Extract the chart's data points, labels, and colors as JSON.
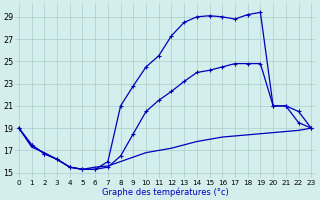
{
  "title": "Graphe des températures (°c)",
  "background_color": "#d4eeed",
  "line_color": "#0000bb",
  "yticks": [
    15,
    17,
    19,
    21,
    23,
    25,
    27,
    29
  ],
  "xticks": [
    0,
    1,
    2,
    3,
    4,
    5,
    6,
    7,
    8,
    9,
    10,
    11,
    12,
    13,
    14,
    15,
    16,
    17,
    18,
    19,
    20,
    21,
    22,
    23
  ],
  "xlim": [
    -0.3,
    23.3
  ],
  "ylim": [
    14.5,
    30.2
  ],
  "series1": {
    "x": [
      0,
      1,
      2,
      3,
      4,
      5,
      6,
      7,
      8,
      9,
      10,
      11,
      12,
      13,
      14,
      15,
      16,
      17,
      18,
      19,
      20,
      21,
      22,
      23
    ],
    "y": [
      19.0,
      17.5,
      16.7,
      16.2,
      15.5,
      15.3,
      15.3,
      16.0,
      21.0,
      22.8,
      24.5,
      25.5,
      27.3,
      28.5,
      29.0,
      29.1,
      29.0,
      28.8,
      29.2,
      29.4,
      21.0,
      21.0,
      20.5,
      19.0
    ]
  },
  "series2": {
    "x": [
      0,
      1,
      2,
      3,
      4,
      5,
      6,
      7,
      8,
      9,
      10,
      11,
      12,
      13,
      14,
      15,
      16,
      17,
      18,
      19,
      20,
      21,
      22,
      23
    ],
    "y": [
      19.0,
      17.5,
      16.7,
      16.2,
      15.5,
      15.3,
      15.3,
      15.5,
      16.5,
      18.5,
      20.5,
      21.5,
      22.3,
      23.2,
      24.0,
      24.2,
      24.5,
      24.8,
      24.8,
      24.8,
      21.0,
      21.0,
      19.5,
      19.0
    ]
  },
  "series3": {
    "x": [
      0,
      1,
      2,
      3,
      4,
      5,
      6,
      7,
      8,
      9,
      10,
      11,
      12,
      13,
      14,
      15,
      16,
      17,
      18,
      19,
      20,
      21,
      22,
      23
    ],
    "y": [
      19.0,
      17.3,
      16.8,
      16.2,
      15.5,
      15.3,
      15.5,
      15.6,
      16.0,
      16.4,
      16.8,
      17.0,
      17.2,
      17.5,
      17.8,
      18.0,
      18.2,
      18.3,
      18.4,
      18.5,
      18.6,
      18.7,
      18.8,
      19.0
    ]
  },
  "xlabel_fontsize": 6.0,
  "tick_fontsize": 5.2,
  "ytick_fontsize": 5.8,
  "grid_color": "#a8cece",
  "lw": 0.9
}
